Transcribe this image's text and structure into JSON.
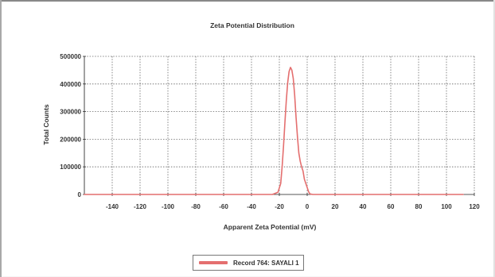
{
  "chart_data": {
    "type": "line",
    "title": "Zeta Potential Distribution",
    "xlabel": "Apparent Zeta Potential (mV)",
    "ylabel": "Total Counts",
    "xlim": [
      -160,
      120
    ],
    "ylim": [
      0,
      500000
    ],
    "x_ticks": [
      -140,
      -120,
      -100,
      -80,
      -60,
      -40,
      -20,
      0,
      20,
      40,
      60,
      80,
      100,
      120
    ],
    "y_ticks": [
      0,
      100000,
      200000,
      300000,
      400000,
      500000
    ],
    "x_tick_labels": [
      "-140",
      "-120",
      "-100",
      "-80",
      "-60",
      "-40",
      "-20",
      "0",
      "20",
      "40",
      "60",
      "80",
      "100",
      "120"
    ],
    "y_tick_labels": [
      "0",
      "100000",
      "200000",
      "300000",
      "400000",
      "500000"
    ],
    "grid": true,
    "legend_position": "bottom-center",
    "series": [
      {
        "name": "Record 764: SAYALI 1",
        "color": "#e46f6f",
        "points": [
          [
            -160,
            0
          ],
          [
            -130,
            0
          ],
          [
            -100,
            0
          ],
          [
            -70,
            0
          ],
          [
            -40,
            0
          ],
          [
            -25,
            0
          ],
          [
            -21,
            8000
          ],
          [
            -19,
            40000
          ],
          [
            -18,
            100000
          ],
          [
            -17,
            175000
          ],
          [
            -16,
            260000
          ],
          [
            -15,
            340000
          ],
          [
            -14,
            405000
          ],
          [
            -13,
            445000
          ],
          [
            -12,
            460000
          ],
          [
            -11,
            450000
          ],
          [
            -10,
            420000
          ],
          [
            -9,
            360000
          ],
          [
            -8,
            280000
          ],
          [
            -7,
            210000
          ],
          [
            -6,
            150000
          ],
          [
            -5,
            120000
          ],
          [
            -4,
            100000
          ],
          [
            -3,
            85000
          ],
          [
            -2,
            55000
          ],
          [
            0,
            25000
          ],
          [
            1,
            10000
          ],
          [
            2,
            2000
          ],
          [
            4,
            0
          ],
          [
            30,
            0
          ],
          [
            60,
            0
          ],
          [
            90,
            0
          ],
          [
            112,
            0
          ]
        ]
      }
    ]
  }
}
